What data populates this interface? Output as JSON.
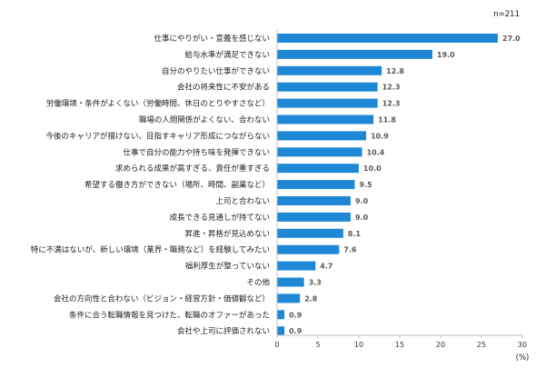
{
  "chart_data": {
    "type": "bar",
    "orientation": "horizontal",
    "sample_size_label": "n=211",
    "unit_label": "(%)",
    "categories": [
      "仕事にやりがい・意義を感じない",
      "給与水準が満足できない",
      "自分のやりたい仕事ができない",
      "会社の将来性に不安がある",
      "労働環境・条件がよくない（労働時間、休日のとりやすさなど）",
      "職場の人間関係がよくない、合わない",
      "今後のキャリアが描けない、目指すキャリア形成につながらない",
      "仕事で自分の能力や持ち味を発揮できない",
      "求められる成果が高すぎる、責任が重すぎる",
      "希望する働き方ができない（場所、時間、副業など）",
      "上司と合わない",
      "成長できる見通しが持てない",
      "昇進・昇格が見込めない",
      "特に不満はないが、新しい環境（業界・職務など）を経験してみたい",
      "福利厚生が整っていない",
      "その他",
      "会社の方向性と合わない（ビジョン・経営方針・価値観など）",
      "条件に合う転職情報を見つけた、転職のオファーがあった",
      "会社や上司に評価されない"
    ],
    "values": [
      27.0,
      19.0,
      12.8,
      12.3,
      12.3,
      11.8,
      10.9,
      10.4,
      10.0,
      9.5,
      9.0,
      9.0,
      8.1,
      7.6,
      4.7,
      3.3,
      2.8,
      0.9,
      0.9
    ],
    "value_labels": [
      "27.0",
      "19.0",
      "12.8",
      "12.3",
      "12.3",
      "11.8",
      "10.9",
      "10.4",
      "10.0",
      "9.5",
      "9.0",
      "9.0",
      "8.1",
      "7.6",
      "4.7",
      "3.3",
      "2.8",
      "0.9",
      "0.9"
    ],
    "xlim": [
      0,
      30
    ],
    "xticks": [
      0,
      5,
      10,
      15,
      20,
      25,
      30
    ],
    "grid": false,
    "bar_color": "#1e88d6",
    "axis_color": "#bfbfbf"
  }
}
